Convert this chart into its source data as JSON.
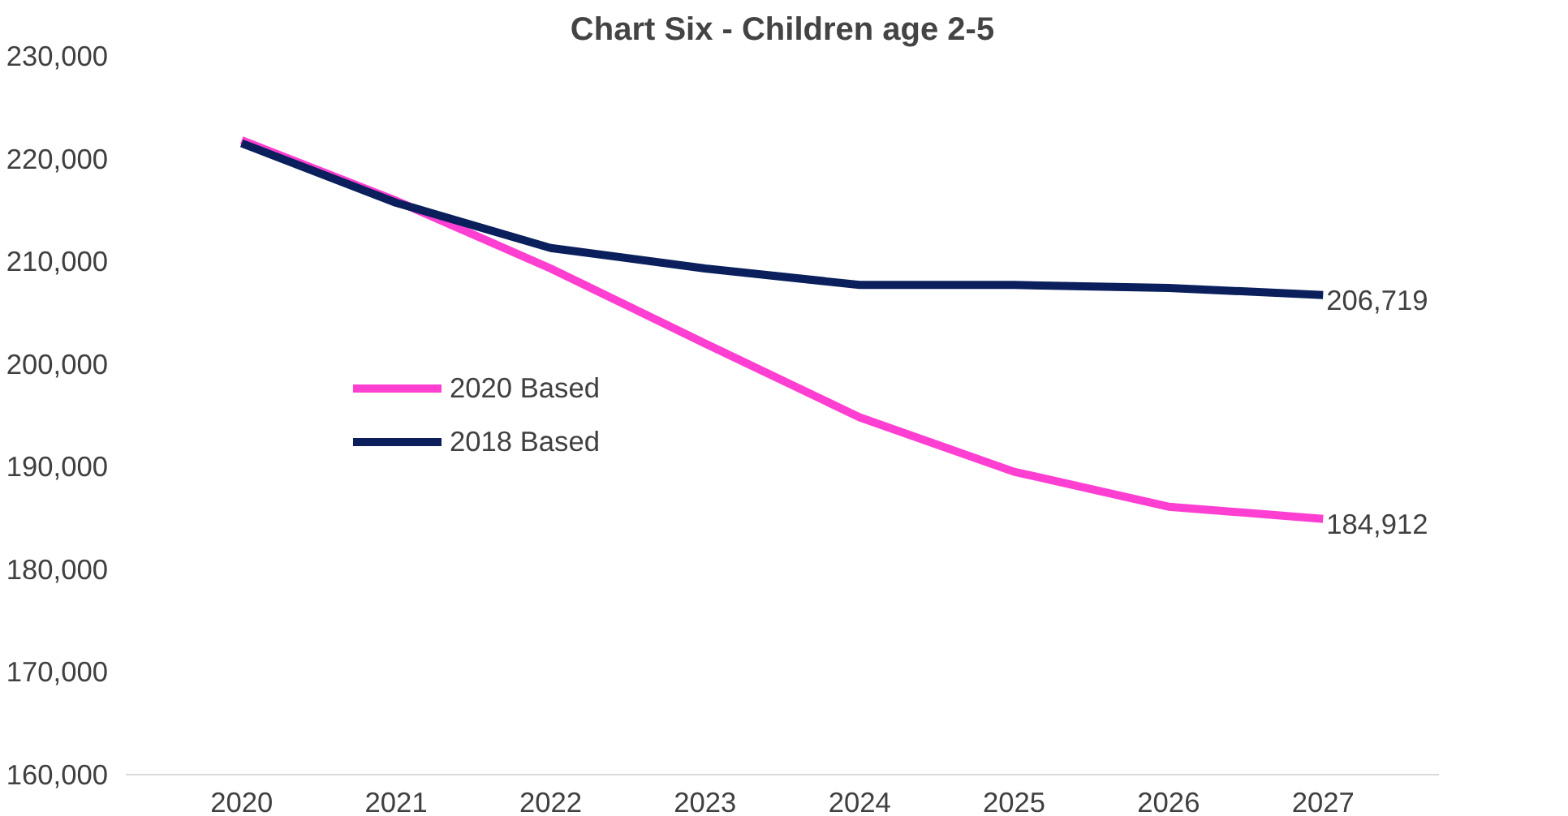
{
  "chart_data": {
    "type": "line",
    "title": "Chart Six - Children age 2-5",
    "categories": [
      "2020",
      "2021",
      "2022",
      "2023",
      "2024",
      "2025",
      "2026",
      "2027"
    ],
    "series": [
      {
        "name": "2020 Based",
        "color": "#ff3fd2",
        "values": [
          221800,
          215900,
          209300,
          202000,
          194800,
          189500,
          186100,
          184912
        ],
        "value_labels": [
          null,
          null,
          null,
          null,
          null,
          null,
          null,
          "184,912"
        ]
      },
      {
        "name": "2018 Based",
        "color": "#0a1f5c",
        "values": [
          221500,
          215700,
          211300,
          209300,
          207700,
          207700,
          207400,
          206719
        ],
        "value_labels": [
          null,
          null,
          null,
          null,
          null,
          null,
          null,
          "206,719"
        ]
      }
    ],
    "ylim": [
      160000,
      230000
    ],
    "yticks": [
      {
        "value": 160000,
        "label": "160,000"
      },
      {
        "value": 170000,
        "label": "170,000"
      },
      {
        "value": 180000,
        "label": "180,000"
      },
      {
        "value": 190000,
        "label": "190,000"
      },
      {
        "value": 200000,
        "label": "200,000"
      },
      {
        "value": 210000,
        "label": "210,000"
      },
      {
        "value": 220000,
        "label": "220,000"
      },
      {
        "value": 230000,
        "label": "230,000"
      }
    ],
    "grid": false,
    "legend": "left",
    "marker": "none",
    "line_style": "solid"
  }
}
